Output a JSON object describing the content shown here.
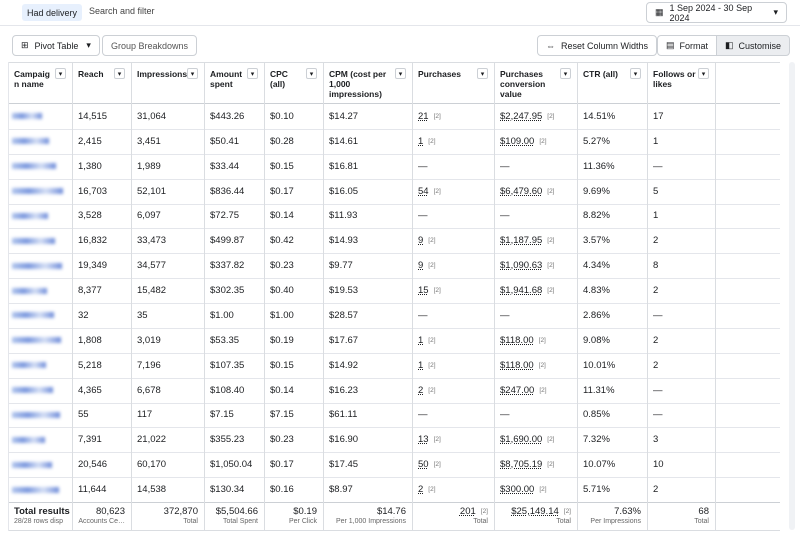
{
  "top_bar": {
    "filter_chip": "Had delivery",
    "search_placeholder": "Search and filter",
    "date_range": "1 Sep 2024 - 30 Sep 2024"
  },
  "toolbar": {
    "pivot_table": "Pivot Table",
    "group_breakdowns": "Group Breakdowns",
    "reset_column_widths": "Reset Column Widths",
    "format": "Format",
    "customise": "Customise"
  },
  "table": {
    "columns": [
      "Campaign name",
      "Reach",
      "Impressions",
      "Amount spent",
      "CPC (all)",
      "CPM (cost per 1,000 impressions)",
      "Purchases",
      "Purchases conversion value",
      "CTR (all)",
      "Follows or likes"
    ],
    "rows": [
      [
        "14,515",
        "31,064",
        "$443.26",
        "$0.10",
        "$14.27",
        [
          "21",
          "[2]"
        ],
        [
          "$2,247.95",
          "[2]"
        ],
        "14.51%",
        "17"
      ],
      [
        "2,415",
        "3,451",
        "$50.41",
        "$0.28",
        "$14.61",
        [
          "1",
          "[2]"
        ],
        [
          "$109.00",
          "[2]"
        ],
        "5.27%",
        "1"
      ],
      [
        "1,380",
        "1,989",
        "$33.44",
        "$0.15",
        "$16.81",
        "—",
        "—",
        "11.36%",
        "—"
      ],
      [
        "16,703",
        "52,101",
        "$836.44",
        "$0.17",
        "$16.05",
        [
          "54",
          "[2]"
        ],
        [
          "$6,479.60",
          "[2]"
        ],
        "9.69%",
        "5"
      ],
      [
        "3,528",
        "6,097",
        "$72.75",
        "$0.14",
        "$11.93",
        "—",
        "—",
        "8.82%",
        "1"
      ],
      [
        "16,832",
        "33,473",
        "$499.87",
        "$0.42",
        "$14.93",
        [
          "9",
          "[2]"
        ],
        [
          "$1,187.95",
          "[2]"
        ],
        "3.57%",
        "2"
      ],
      [
        "19,349",
        "34,577",
        "$337.82",
        "$0.23",
        "$9.77",
        [
          "9",
          "[2]"
        ],
        [
          "$1,090.63",
          "[2]"
        ],
        "4.34%",
        "8"
      ],
      [
        "8,377",
        "15,482",
        "$302.35",
        "$0.40",
        "$19.53",
        [
          "15",
          "[2]"
        ],
        [
          "$1,941.68",
          "[2]"
        ],
        "4.83%",
        "2"
      ],
      [
        "32",
        "35",
        "$1.00",
        "$1.00",
        "$28.57",
        "—",
        "—",
        "2.86%",
        "—"
      ],
      [
        "1,808",
        "3,019",
        "$53.35",
        "$0.19",
        "$17.67",
        [
          "1",
          "[2]"
        ],
        [
          "$118.00",
          "[2]"
        ],
        "9.08%",
        "2"
      ],
      [
        "5,218",
        "7,196",
        "$107.35",
        "$0.15",
        "$14.92",
        [
          "1",
          "[2]"
        ],
        [
          "$118.00",
          "[2]"
        ],
        "10.01%",
        "2"
      ],
      [
        "4,365",
        "6,678",
        "$108.40",
        "$0.14",
        "$16.23",
        [
          "2",
          "[2]"
        ],
        [
          "$247.00",
          "[2]"
        ],
        "11.31%",
        "—"
      ],
      [
        "55",
        "117",
        "$7.15",
        "$7.15",
        "$61.11",
        "—",
        "—",
        "0.85%",
        "—"
      ],
      [
        "7,391",
        "21,022",
        "$355.23",
        "$0.23",
        "$16.90",
        [
          "13",
          "[2]"
        ],
        [
          "$1,690.00",
          "[2]"
        ],
        "7.32%",
        "3"
      ],
      [
        "20,546",
        "60,170",
        "$1,050.04",
        "$0.17",
        "$17.45",
        [
          "50",
          "[2]"
        ],
        [
          "$8,705.19",
          "[2]"
        ],
        "10.07%",
        "10"
      ],
      [
        "11,644",
        "14,538",
        "$130.34",
        "$0.16",
        "$8.97",
        [
          "2",
          "[2]"
        ],
        [
          "$300.00",
          "[2]"
        ],
        "5.71%",
        "2"
      ]
    ],
    "totals": [
      {
        "value": "Total results",
        "label": "28/28 rows disp"
      },
      {
        "value": "80,623",
        "label": "Accounts Ce…"
      },
      {
        "value": "372,870",
        "label": "Total"
      },
      {
        "value": "$5,504.66",
        "label": "Total Spent"
      },
      {
        "value": "$0.19",
        "label": "Per Click"
      },
      {
        "value": "$14.76",
        "label": "Per 1,000 Impressions"
      },
      {
        "value": "201",
        "badge": "[2]",
        "label": "Total"
      },
      {
        "value": "$25,149.14",
        "badge": "[2]",
        "label": "Total"
      },
      {
        "value": "7.63%",
        "label": "Per Impressions"
      },
      {
        "value": "68",
        "label": "Total"
      }
    ]
  }
}
